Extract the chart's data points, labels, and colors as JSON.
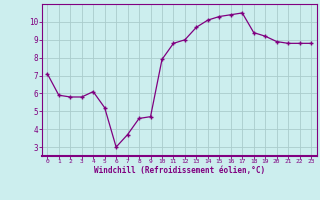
{
  "x": [
    0,
    1,
    2,
    3,
    4,
    5,
    6,
    7,
    8,
    9,
    10,
    11,
    12,
    13,
    14,
    15,
    16,
    17,
    18,
    19,
    20,
    21,
    22,
    23
  ],
  "y": [
    7.1,
    5.9,
    5.8,
    5.8,
    6.1,
    5.2,
    3.0,
    3.7,
    4.6,
    4.7,
    7.9,
    8.8,
    9.0,
    9.7,
    10.1,
    10.3,
    10.4,
    10.5,
    9.4,
    9.2,
    8.9,
    8.8,
    8.8,
    8.8
  ],
  "line_color": "#800080",
  "marker": "+",
  "bg_color": "#cceeee",
  "grid_color": "#aacccc",
  "xlabel": "Windchill (Refroidissement éolien,°C)",
  "xlabel_color": "#800080",
  "tick_color": "#800080",
  "spine_color": "#800080",
  "ylim": [
    2.5,
    11.0
  ],
  "xlim": [
    -0.5,
    23.5
  ],
  "yticks": [
    3,
    4,
    5,
    6,
    7,
    8,
    9,
    10
  ],
  "xticks": [
    0,
    1,
    2,
    3,
    4,
    5,
    6,
    7,
    8,
    9,
    10,
    11,
    12,
    13,
    14,
    15,
    16,
    17,
    18,
    19,
    20,
    21,
    22,
    23
  ],
  "figsize": [
    3.2,
    2.0
  ],
  "dpi": 100
}
